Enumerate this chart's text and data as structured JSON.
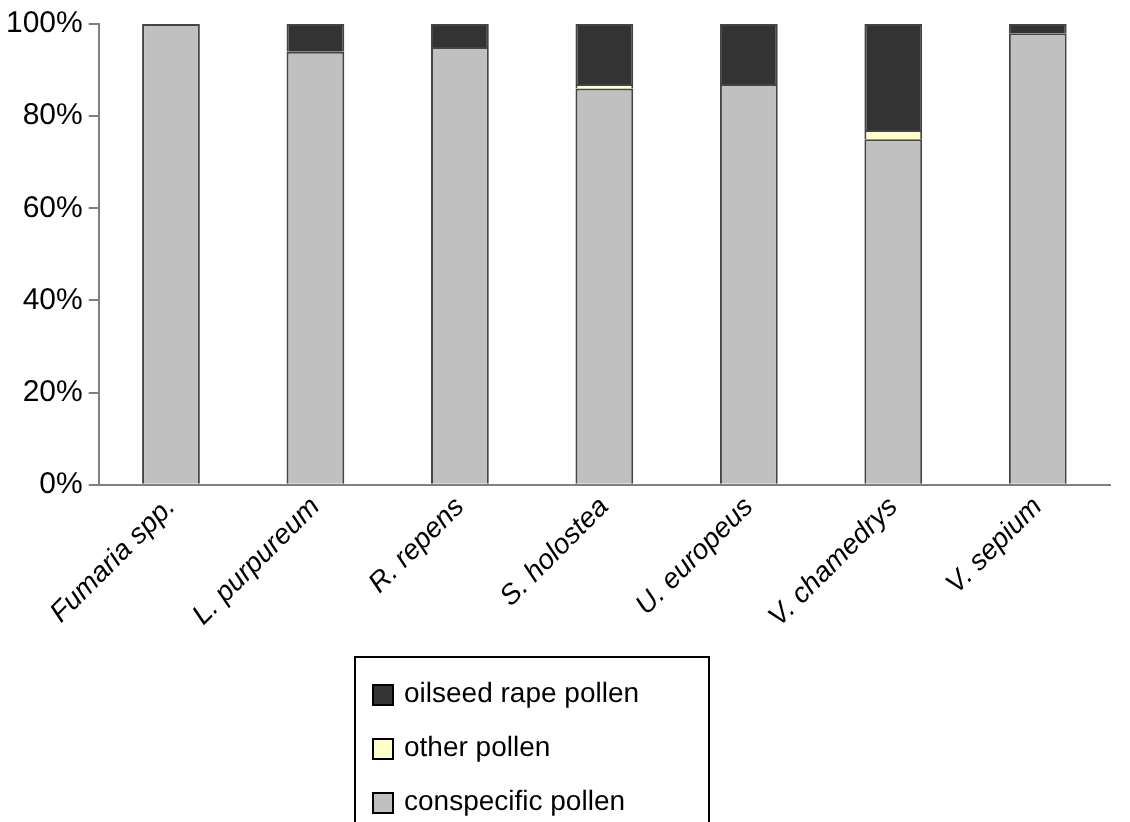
{
  "chart_data": {
    "type": "bar",
    "stacked": true,
    "categories": [
      "Fumaria spp.",
      "L. purpureum",
      "R. repens",
      "S. holostea",
      "U. europeus",
      "V. chamedrys",
      "V. sepium"
    ],
    "series": [
      {
        "name": "conspecific pollen",
        "color": "#c0c0c0",
        "values": [
          100,
          94,
          95,
          86,
          87,
          75,
          98
        ]
      },
      {
        "name": "other pollen",
        "color": "#ffffcc",
        "values": [
          0,
          0,
          0,
          1,
          0,
          2,
          0
        ]
      },
      {
        "name": "oilseed rape pollen",
        "color": "#333333",
        "values": [
          0,
          6,
          5,
          13,
          13,
          23,
          2
        ]
      }
    ],
    "ylim": [
      0,
      100
    ],
    "yticks": [
      {
        "value": 0,
        "label": "0%"
      },
      {
        "value": 20,
        "label": "20%"
      },
      {
        "value": 40,
        "label": "40%"
      },
      {
        "value": 60,
        "label": "60%"
      },
      {
        "value": 80,
        "label": "80%"
      },
      {
        "value": 100,
        "label": "100%"
      }
    ],
    "grid": false,
    "legend": "bottom"
  }
}
